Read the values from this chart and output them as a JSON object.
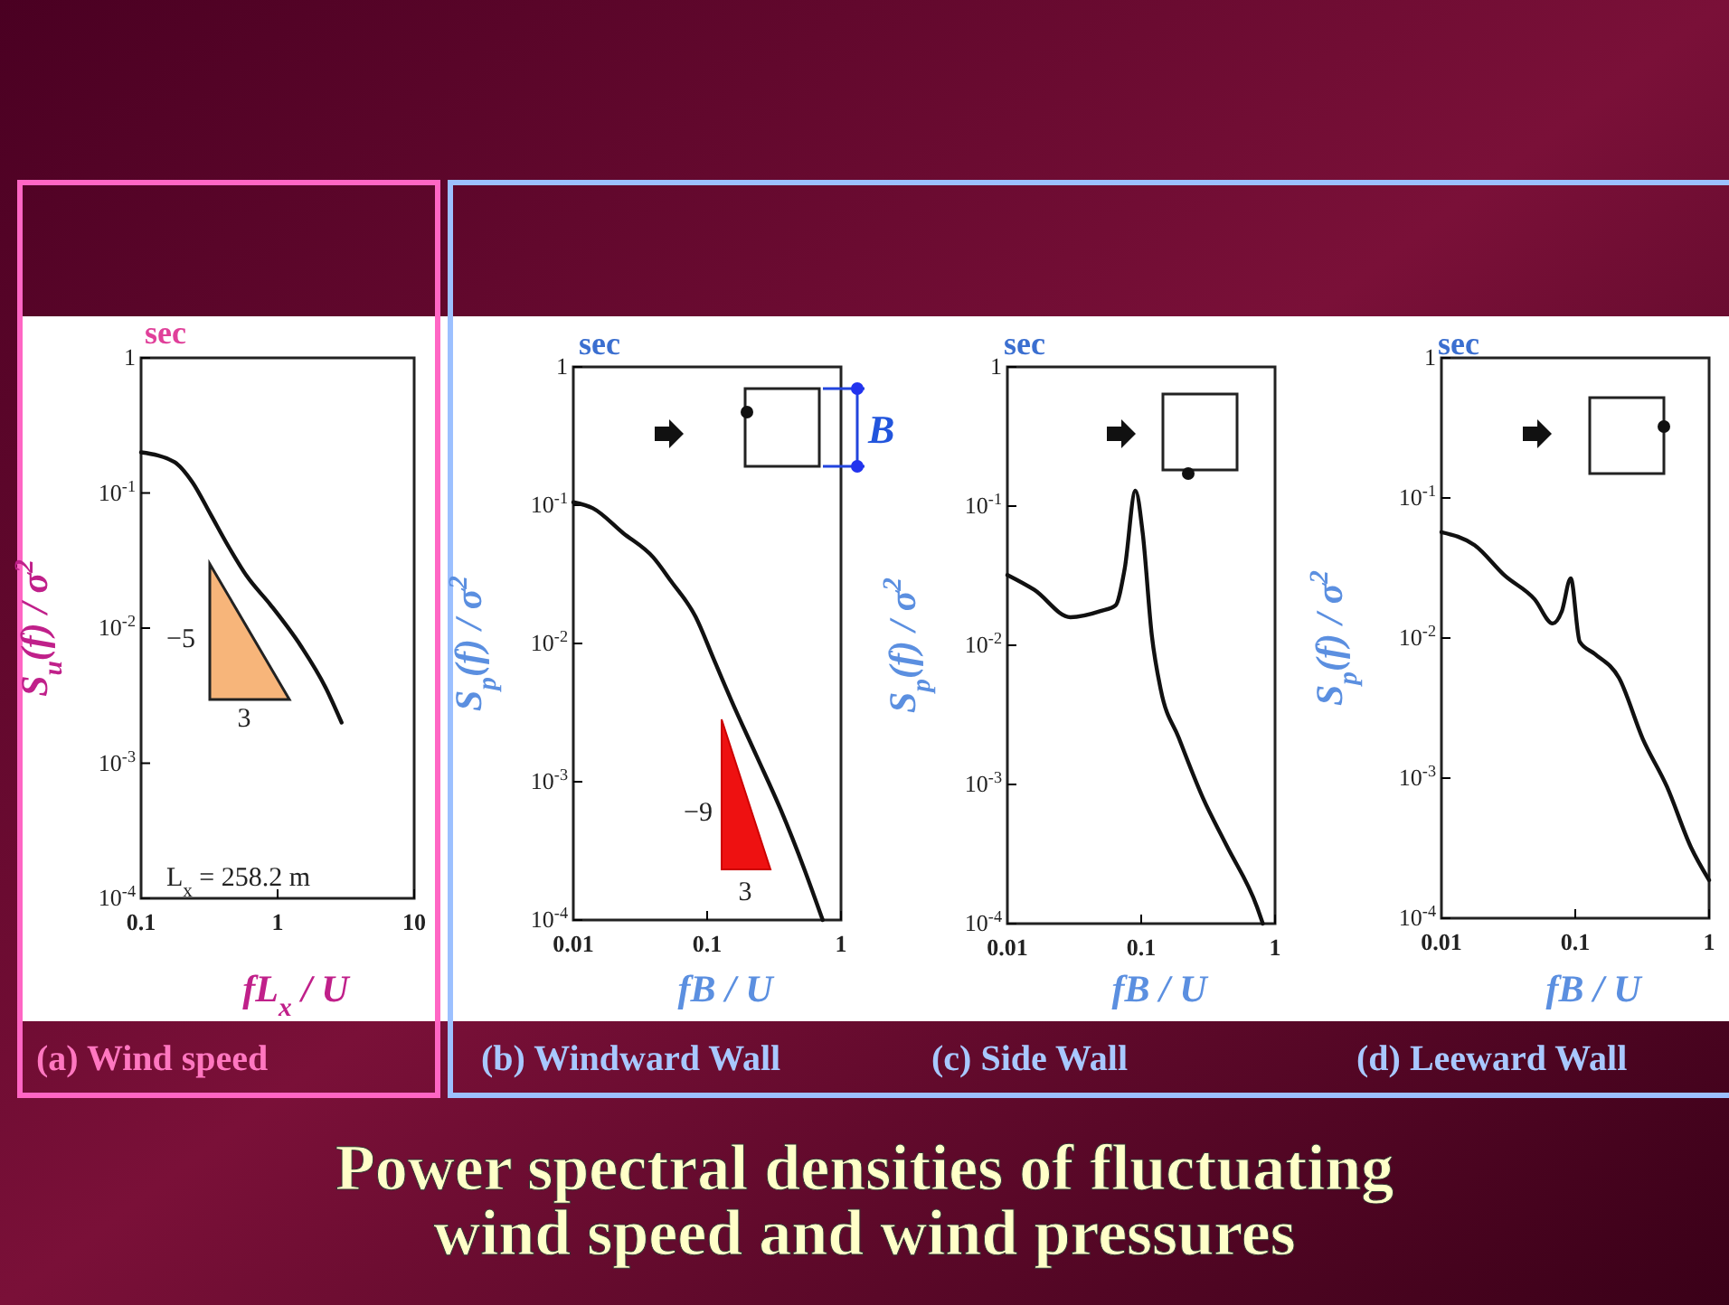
{
  "chart_data": [
    {
      "type": "line",
      "subtitle": "(a) Wind speed",
      "xlabel": "fL$_{x}$ / U",
      "ylabel": "S$_{u}$(f) / σ$^{2}$",
      "log": "xy",
      "xlim": [
        0.1,
        10
      ],
      "xticks": [
        0.1,
        1,
        10
      ],
      "ylim": [
        0.0001,
        1
      ],
      "yticks": [
        {
          "value": 0.0001,
          "label": "10$^{-4}$"
        },
        {
          "value": 0.001,
          "label": "10$^{-3}$"
        },
        {
          "value": 0.01,
          "label": "10$^{-2}$"
        },
        {
          "value": 0.1,
          "label": "10$^{-1}$"
        },
        {
          "value": 1,
          "label": "1"
        }
      ],
      "annotations": [
        "sec",
        "−5",
        "3",
        "L$_{x}$ = 258.2 m"
      ],
      "series": [
        {
          "color": "#111111",
          "x": [
            0.1,
            0.175,
            0.238,
            0.323,
            0.438,
            0.594,
            0.89,
            1.49,
            2.24,
            2.94
          ],
          "values": [
            0.2,
            0.17,
            0.12,
            0.0695,
            0.04,
            0.0243,
            0.0148,
            0.0073,
            0.00365,
            0.002
          ]
        }
      ]
    },
    {
      "type": "line",
      "subtitle": "(b) Windward Wall",
      "xlabel": "fB / U",
      "ylabel": "S$_{p}$(f) / σ$^{2}$",
      "log": "xy",
      "xlim": [
        0.01,
        1
      ],
      "xticks": [
        0.01,
        0.1,
        1
      ],
      "ylim": [
        0.0001,
        1
      ],
      "yticks": [
        {
          "value": 0.0001,
          "label": "10$^{-4}$"
        },
        {
          "value": 0.001,
          "label": "10$^{-3}$"
        },
        {
          "value": 0.01,
          "label": "10$^{-2}$"
        },
        {
          "value": 0.1,
          "label": "10$^{-1}$"
        },
        {
          "value": 1,
          "label": "1"
        }
      ],
      "annotations": [
        "sec",
        "−9",
        "3",
        "B"
      ],
      "series": [
        {
          "color": "#111111",
          "x": [
            0.01,
            0.014,
            0.0235,
            0.0395,
            0.054,
            0.082,
            0.112,
            0.153,
            0.233,
            0.354,
            0.535,
            0.73
          ],
          "values": [
            0.105,
            0.095,
            0.063,
            0.042,
            0.028,
            0.0156,
            0.0077,
            0.0038,
            0.00155,
            0.00063,
            0.00023,
            0.0001
          ]
        }
      ]
    },
    {
      "type": "line",
      "subtitle": "(c) Side Wall",
      "xlabel": "fB / U",
      "ylabel": "S$_{p}$(f) / σ$^{2}$",
      "log": "xy",
      "xlim": [
        0.01,
        1
      ],
      "xticks": [
        0.01,
        0.1,
        1
      ],
      "ylim": [
        0.0001,
        1
      ],
      "yticks": [
        {
          "value": 0.0001,
          "label": "10$^{-4}$"
        },
        {
          "value": 0.001,
          "label": "10$^{-3}$"
        },
        {
          "value": 0.01,
          "label": "10$^{-2}$"
        },
        {
          "value": 0.1,
          "label": "10$^{-1}$"
        },
        {
          "value": 1,
          "label": "1"
        }
      ],
      "annotations": [
        "sec"
      ],
      "series": [
        {
          "color": "#111111",
          "x": [
            0.01,
            0.0159,
            0.0296,
            0.0497,
            0.0644,
            0.0752,
            0.0906,
            0.1026,
            0.12,
            0.14,
            0.191,
            0.289,
            0.437,
            0.733,
            0.81
          ],
          "values": [
            0.032,
            0.025,
            0.0159,
            0.0176,
            0.0194,
            0.0353,
            0.129,
            0.064,
            0.0118,
            0.0048,
            0.00216,
            0.0008,
            0.00036,
            0.000132,
            0.0001
          ]
        }
      ]
    },
    {
      "type": "line",
      "subtitle": "(d) Leeward Wall",
      "xlabel": "fB / U",
      "ylabel": "S$_{p}$(f) / σ$^{2}$",
      "log": "xy",
      "xlim": [
        0.01,
        1
      ],
      "xticks": [
        0.01,
        0.1,
        1
      ],
      "ylim": [
        0.0001,
        1
      ],
      "yticks": [
        {
          "value": 0.0001,
          "label": "10$^{-4}$"
        },
        {
          "value": 0.001,
          "label": "10$^{-3}$"
        },
        {
          "value": 0.01,
          "label": "10$^{-2}$"
        },
        {
          "value": 0.1,
          "label": "10$^{-1}$"
        },
        {
          "value": 1,
          "label": "1"
        }
      ],
      "annotations": [
        "sec"
      ],
      "series": [
        {
          "color": "#111111",
          "x": [
            0.01,
            0.0177,
            0.0296,
            0.0497,
            0.0678,
            0.0793,
            0.0925,
            0.108,
            0.14,
            0.212,
            0.32,
            0.484,
            0.733,
            1.0
          ],
          "values": [
            0.057,
            0.046,
            0.028,
            0.0189,
            0.0127,
            0.0155,
            0.0267,
            0.0094,
            0.0077,
            0.0052,
            0.0019,
            0.00087,
            0.00032,
            0.000187
          ]
        }
      ]
    },
    {
      "type": "other",
      "title": "Power spectral densities of fluctuating wind speed and wind pressures"
    }
  ]
}
